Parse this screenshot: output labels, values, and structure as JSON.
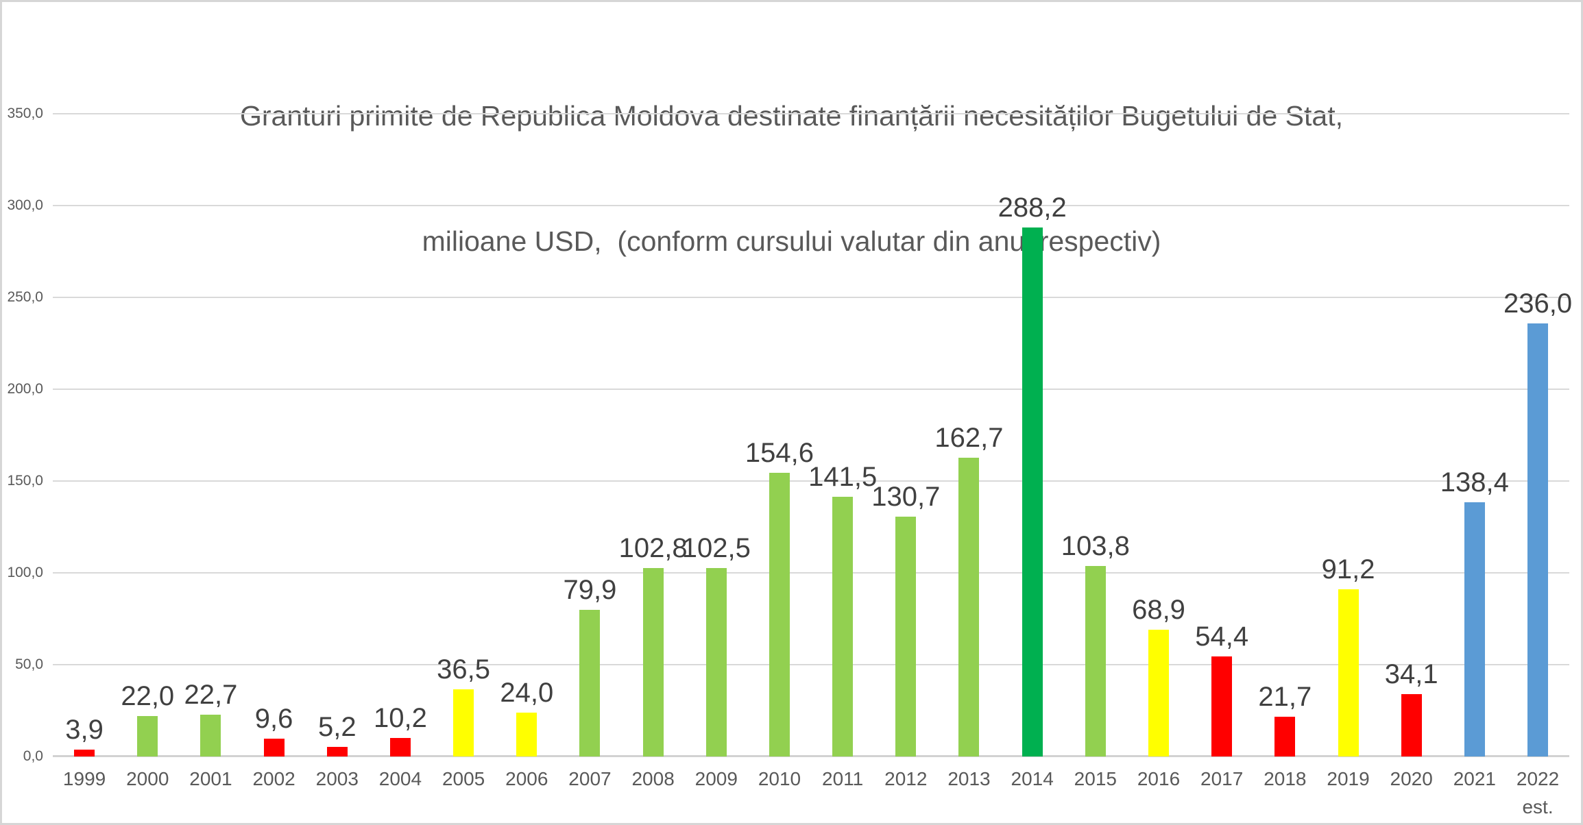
{
  "title": {
    "line1": "Granturi primite de Republica Moldova destinate finanțării necesităților Bugetului de Stat,",
    "line2": "milioane USD,  (conform cursului valutar din anul respectiv)"
  },
  "chart_data": {
    "type": "bar",
    "title": "Granturi primite de Republica Moldova destinate finanțării necesităților Bugetului de Stat, milioane USD, (conform cursului valutar din anul respectiv)",
    "categories": [
      "1999",
      "2000",
      "2001",
      "2002",
      "2003",
      "2004",
      "2005",
      "2006",
      "2007",
      "2008",
      "2009",
      "2010",
      "2011",
      "2012",
      "2013",
      "2014",
      "2015",
      "2016",
      "2017",
      "2018",
      "2019",
      "2020",
      "2021",
      "2022"
    ],
    "values": [
      3.9,
      22.0,
      22.7,
      9.6,
      5.2,
      10.2,
      36.5,
      24.0,
      79.9,
      102.8,
      102.5,
      154.6,
      141.5,
      130.7,
      162.7,
      288.2,
      103.8,
      68.9,
      54.4,
      21.7,
      91.2,
      34.1,
      138.4,
      236.0
    ],
    "labels": [
      "3,9",
      "22,0",
      "22,7",
      "9,6",
      "5,2",
      "10,2",
      "36,5",
      "24,0",
      "79,9",
      "102,8",
      "102,5",
      "154,6",
      "141,5",
      "130,7",
      "162,7",
      "288,2",
      "103,8",
      "68,9",
      "54,4",
      "21,7",
      "91,2",
      "34,1",
      "138,4",
      "236,0"
    ],
    "colors": [
      "red",
      "green",
      "green",
      "red",
      "red",
      "red",
      "yellow",
      "yellow",
      "green",
      "green",
      "green",
      "green",
      "green",
      "green",
      "green",
      "darkgreen",
      "green",
      "yellow",
      "red",
      "red",
      "yellow",
      "red",
      "blue",
      "blue"
    ],
    "palette": {
      "red": "#FF0000",
      "green": "#92D050",
      "darkgreen": "#00B050",
      "yellow": "#FFFF00",
      "blue": "#5B9BD5"
    },
    "last_category_note": "est.",
    "xlabel": "",
    "ylabel": "",
    "ylim": [
      0,
      350
    ],
    "yticks": [
      "0,0",
      "50,0",
      "100,0",
      "150,0",
      "200,0",
      "250,0",
      "300,0",
      "350,0"
    ],
    "grid": true,
    "legend": "none"
  }
}
